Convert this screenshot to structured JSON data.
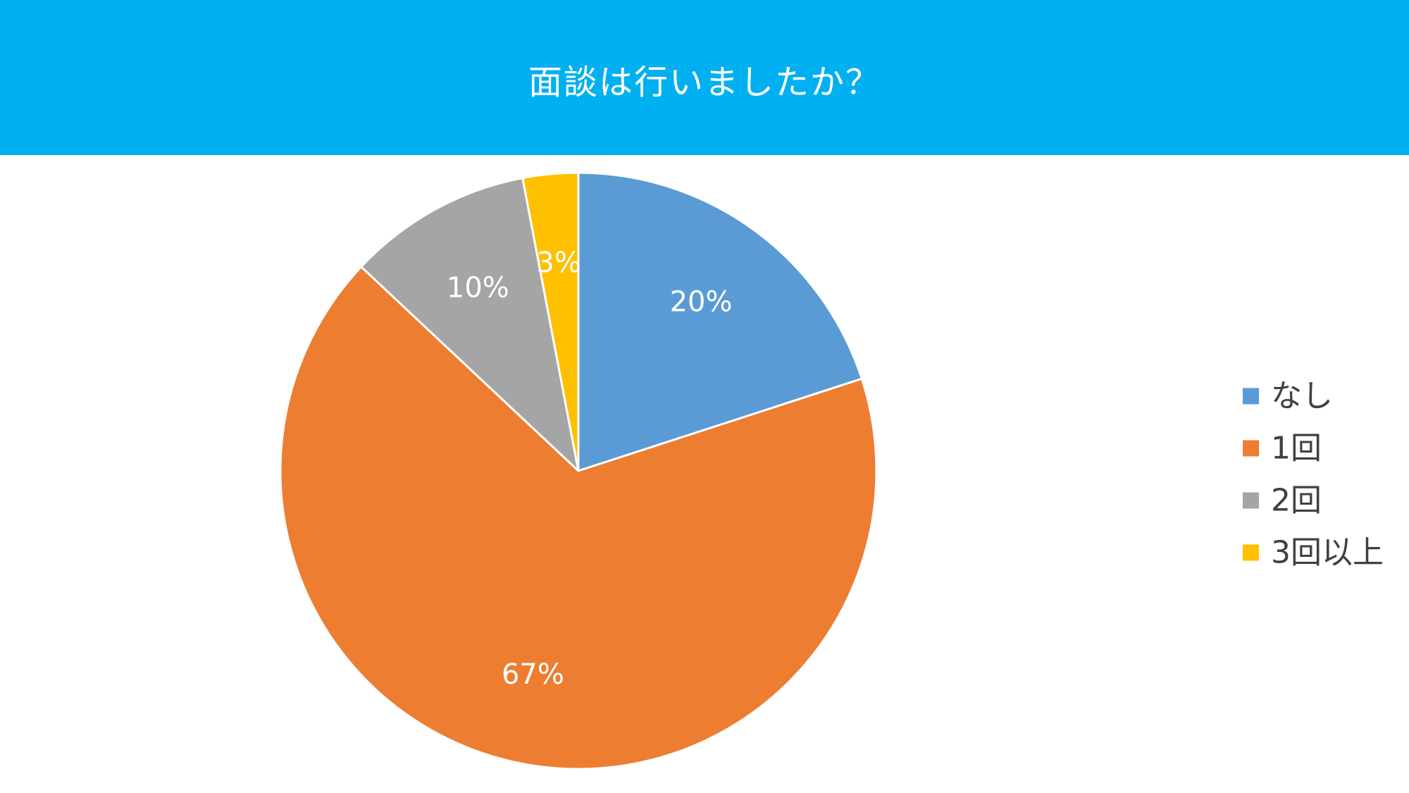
{
  "header": {
    "title": "面談は行いましたか？"
  },
  "colors": {
    "header_bg": "#00b0f0",
    "slice_border": "#ffffff"
  },
  "chart_data": {
    "type": "pie",
    "title": "面談は行いましたか？",
    "categories": [
      "なし",
      "1回",
      "2回",
      "3回以上"
    ],
    "values": [
      20,
      67,
      10,
      3
    ],
    "labels": [
      "20%",
      "67%",
      "10%",
      "3%"
    ],
    "colors": [
      "#5b9bd5",
      "#ed7d31",
      "#a5a5a5",
      "#ffc000"
    ],
    "start_angle_deg": 0,
    "direction": "clockwise",
    "legend_position": "right"
  }
}
